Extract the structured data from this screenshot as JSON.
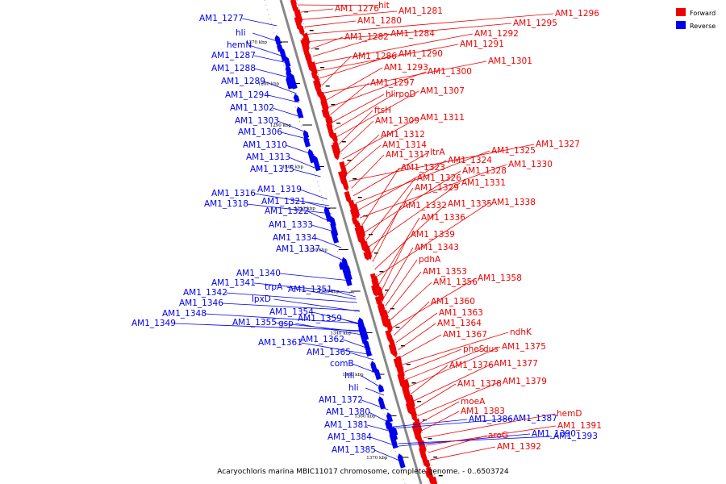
{
  "caption": "Acaryochloris marina MBIC11017 chromosome, complete genome. - 0..6503724",
  "colors": {
    "forward": "#ee0000",
    "reverse": "#0000ee",
    "backbone": "#888888",
    "tick": "#000000"
  },
  "legend": {
    "forward": "Forward",
    "reverse": "Reverse"
  },
  "ticks": [
    "1270 kbp",
    "1280 kbp",
    "1290 kbp",
    "1300 kbp",
    "1310 kbp",
    "1320 kbp",
    "1330 kbp",
    "1340 kbp",
    "1350 kbp",
    "1360 kbp",
    "1370 kbp"
  ],
  "reverse_labels": [
    "AM1_1277",
    "hli",
    "hemN",
    "AM1_1287",
    "AM1_1288",
    "AM1_1289",
    "AM1_1294",
    "AM1_1302",
    "AM1_1303",
    "AM1_1306",
    "AM1_1310",
    "AM1_1313",
    "AM1_1315",
    "AM1_1319",
    "AM1_1316",
    "AM1_1321",
    "AM1_1318",
    "AM1_1322",
    "AM1_1333",
    "AM1_1334",
    "AM1_1337",
    "AM1_1340",
    "AM1_1341",
    "trpA",
    "AM1_1351",
    "AM1_1342",
    "lpxD",
    "AM1_1346",
    "AM1_1348",
    "AM1_1354",
    "AM1_1349",
    "AM1_1355",
    "gsp",
    "AM1_1359",
    "AM1_1362",
    "AM1_1361",
    "AM1_1365",
    "comB",
    "hli",
    "hli",
    "AM1_1372",
    "AM1_1380",
    "AM1_1381",
    "AM1_1384",
    "AM1_1385",
    "AM1_1386",
    "AM1_1387",
    "AM1_1390",
    "AM1_1393"
  ],
  "forward_labels": [
    "hit",
    "AM1_1276",
    "AM1_1281",
    "AM1_1280",
    "AM1_1296",
    "AM1_1295",
    "AM1_1282",
    "AM1_1284",
    "AM1_1292",
    "AM1_1291",
    "AM1_1290",
    "AM1_1286",
    "AM1_1301",
    "AM1_1293",
    "AM1_1300",
    "AM1_1297",
    "hli",
    "rpoD",
    "AM1_1307",
    "ftsH",
    "AM1_1309",
    "AM1_1311",
    "AM1_1312",
    "AM1_1314",
    "AM1_1327",
    "AM1_1317",
    "ltrA",
    "AM1_1325",
    "AM1_1324",
    "AM1_1330",
    "AM1_1323",
    "AM1_1328",
    "AM1_1326",
    "AM1_1331",
    "AM1_1329",
    "AM1_1332",
    "AM1_1335",
    "AM1_1338",
    "AM1_1336",
    "AM1_1339",
    "AM1_1343",
    "pdhA",
    "AM1_1353",
    "AM1_1356",
    "AM1_1358",
    "AM1_1360",
    "AM1_1363",
    "AM1_1364",
    "AM1_1367",
    "ndhK",
    "pheS",
    "dus",
    "AM1_1375",
    "AM1_1376",
    "AM1_1377",
    "AM1_1378",
    "AM1_1379",
    "moeA",
    "AM1_1383",
    "hemD",
    "AM1_1391",
    "aroG",
    "AM1_1392"
  ]
}
